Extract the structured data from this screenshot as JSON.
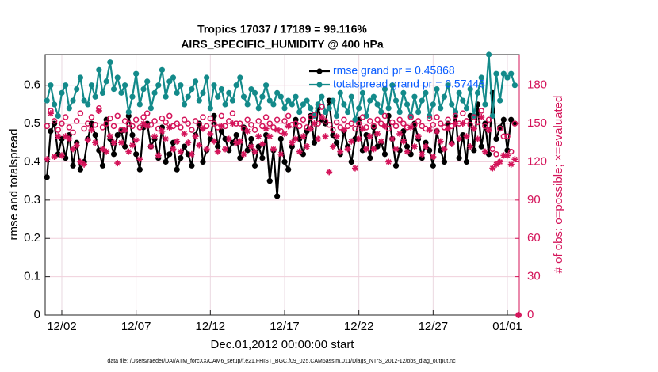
{
  "chart_data": {
    "type": "line",
    "title": "Tropics 17037 / 17189 = 99.116%",
    "subtitle": "AIRS_SPECIFIC_HUMIDITY @ 400 hPa",
    "x_label": "Dec.01,2012 00:00:00 start",
    "y_label": "rmse and totalspread",
    "y2_label": "# of obs: o=possible; ×=evaluated",
    "footnote": "data file: /Users/raeder/DAI/ATM_forcXX/CAM6_setup/f.e21.FHIST_BGC.f09_025.CAM6assim.011/Diags_NTrS_2012-12/obs_diag_output.nc",
    "xlim": [
      -0.12,
      31.8
    ],
    "ylim": [
      0,
      0.68
    ],
    "y2lim": [
      0,
      204
    ],
    "xticks": [
      {
        "value": 1,
        "label": "12/02"
      },
      {
        "value": 6,
        "label": "12/07"
      },
      {
        "value": 11,
        "label": "12/12"
      },
      {
        "value": 16,
        "label": "12/17"
      },
      {
        "value": 21,
        "label": "12/22"
      },
      {
        "value": 26,
        "label": "12/27"
      },
      {
        "value": 31,
        "label": "01/01"
      }
    ],
    "yticks": [
      0,
      0.1,
      0.2,
      0.3,
      0.4,
      0.5,
      0.6
    ],
    "y2ticks": [
      0,
      30,
      60,
      90,
      120,
      150,
      180
    ],
    "grid": true,
    "x": [
      0,
      0.25,
      0.5,
      0.75,
      1,
      1.25,
      1.5,
      1.75,
      2,
      2.25,
      2.5,
      2.75,
      3,
      3.25,
      3.5,
      3.75,
      4,
      4.25,
      4.5,
      4.75,
      5,
      5.25,
      5.5,
      5.75,
      6,
      6.25,
      6.5,
      6.75,
      7,
      7.25,
      7.5,
      7.75,
      8,
      8.25,
      8.5,
      8.75,
      9,
      9.25,
      9.5,
      9.75,
      10,
      10.25,
      10.5,
      10.75,
      11,
      11.25,
      11.5,
      11.75,
      12,
      12.25,
      12.5,
      12.75,
      13,
      13.25,
      13.5,
      13.75,
      14,
      14.25,
      14.5,
      14.75,
      15,
      15.25,
      15.5,
      15.75,
      16,
      16.25,
      16.5,
      16.75,
      17,
      17.25,
      17.5,
      17.75,
      18,
      18.25,
      18.5,
      18.75,
      19,
      19.25,
      19.5,
      19.75,
      20,
      20.25,
      20.5,
      20.75,
      21,
      21.25,
      21.5,
      21.75,
      22,
      22.25,
      22.5,
      22.75,
      23,
      23.25,
      23.5,
      23.75,
      24,
      24.25,
      24.5,
      24.75,
      25,
      25.25,
      25.5,
      25.75,
      26,
      26.25,
      26.5,
      26.75,
      27,
      27.25,
      27.5,
      27.75,
      28,
      28.25,
      28.5,
      28.75,
      29,
      29.25,
      29.5,
      29.75,
      30,
      30.25,
      30.5,
      30.75,
      31,
      31.25,
      31.5,
      31.75
    ],
    "series": [
      {
        "name": "rmse grand pr = 0.45868",
        "color": "#000000",
        "marker": "dot",
        "values": [
          0.36,
          0.48,
          0.5,
          0.42,
          0.46,
          0.41,
          0.47,
          0.39,
          0.45,
          0.38,
          0.4,
          0.46,
          0.5,
          0.47,
          0.43,
          0.39,
          0.51,
          0.46,
          0.42,
          0.47,
          0.48,
          0.44,
          0.52,
          0.47,
          0.42,
          0.38,
          0.49,
          0.5,
          0.44,
          0.46,
          0.41,
          0.49,
          0.4,
          0.42,
          0.45,
          0.38,
          0.41,
          0.44,
          0.42,
          0.39,
          0.47,
          0.5,
          0.4,
          0.43,
          0.46,
          0.52,
          0.44,
          0.48,
          0.46,
          0.43,
          0.45,
          0.47,
          0.41,
          0.49,
          0.43,
          0.46,
          0.39,
          0.44,
          0.41,
          0.47,
          0.35,
          0.43,
          0.31,
          0.46,
          0.4,
          0.38,
          0.44,
          0.51,
          0.46,
          0.42,
          0.48,
          0.52,
          0.45,
          0.54,
          0.51,
          0.5,
          0.56,
          0.47,
          0.45,
          0.42,
          0.48,
          0.44,
          0.4,
          0.46,
          0.51,
          0.43,
          0.47,
          0.41,
          0.49,
          0.44,
          0.45,
          0.42,
          0.52,
          0.46,
          0.39,
          0.43,
          0.48,
          0.44,
          0.42,
          0.5,
          0.46,
          0.41,
          0.45,
          0.43,
          0.39,
          0.48,
          0.43,
          0.4,
          0.5,
          0.45,
          0.53,
          0.41,
          0.47,
          0.4,
          0.52,
          0.43,
          0.55,
          0.44,
          0.5,
          0.42,
          0.58,
          0.46,
          0.49,
          0.51,
          0.43,
          0.51,
          0.5,
          null
        ]
      },
      {
        "name": "totalspread grand pr = 0.57448",
        "color": "#138a8a",
        "marker": "dot",
        "values": [
          0.56,
          0.6,
          0.55,
          0.52,
          0.58,
          0.6,
          0.54,
          0.56,
          0.59,
          0.62,
          0.56,
          0.55,
          0.6,
          0.57,
          0.64,
          0.58,
          0.61,
          0.66,
          0.59,
          0.62,
          0.58,
          0.6,
          0.53,
          0.57,
          0.63,
          0.55,
          0.59,
          0.61,
          0.54,
          0.58,
          0.6,
          0.64,
          0.57,
          0.61,
          0.62,
          0.58,
          0.6,
          0.55,
          0.57,
          0.59,
          0.61,
          0.56,
          0.58,
          0.62,
          0.54,
          0.6,
          0.57,
          0.59,
          0.55,
          0.58,
          0.56,
          0.6,
          0.62,
          0.57,
          0.55,
          0.59,
          0.58,
          0.54,
          0.57,
          0.6,
          0.56,
          0.55,
          0.58,
          0.57,
          0.54,
          0.56,
          0.55,
          0.57,
          0.53,
          0.55,
          0.56,
          0.54,
          0.52,
          0.55,
          0.57,
          0.53,
          0.54,
          0.56,
          0.52,
          0.58,
          0.55,
          0.53,
          0.57,
          0.51,
          0.54,
          0.58,
          0.52,
          0.56,
          0.57,
          0.55,
          0.53,
          0.59,
          0.54,
          0.6,
          0.56,
          0.53,
          0.58,
          0.55,
          0.52,
          0.57,
          0.53,
          0.56,
          0.58,
          0.52,
          0.55,
          0.59,
          0.54,
          0.57,
          0.6,
          0.55,
          0.53,
          0.58,
          0.56,
          0.54,
          0.59,
          0.52,
          0.58,
          0.62,
          0.55,
          0.68,
          0.52,
          0.63,
          0.56,
          0.63,
          0.62,
          0.63,
          0.6,
          null
        ]
      },
      {
        "name": "possible",
        "color": "#d4145a",
        "marker": "circle",
        "axis": "y2",
        "values": [
          148,
          160,
          152,
          145,
          150,
          155,
          147,
          143,
          152,
          158,
          146,
          150,
          155,
          149,
          162,
          147,
          150,
          154,
          148,
          156,
          145,
          152,
          150,
          148,
          153,
          147,
          155,
          158,
          149,
          152,
          146,
          154,
          151,
          156,
          148,
          150,
          147,
          153,
          150,
          145,
          152,
          149,
          155,
          148,
          154,
          150,
          147,
          156,
          148,
          152,
          158,
          150,
          150,
          146,
          153,
          149,
          145,
          152,
          148,
          155,
          150,
          147,
          153,
          144,
          152,
          156,
          149,
          150,
          148,
          153,
          147,
          155,
          157,
          150,
          163,
          152,
          149,
          145,
          151,
          147,
          153,
          148,
          150,
          146,
          150,
          155,
          147,
          152,
          148,
          153,
          150,
          156,
          146,
          151,
          148,
          153,
          150,
          147,
          155,
          149,
          152,
          148,
          146,
          154,
          149,
          155,
          150,
          147,
          153,
          148,
          156,
          150,
          158,
          152,
          149,
          155,
          151,
          160,
          148,
          153,
          130,
          126,
          146,
          140,
          140,
          128,
          150,
          0
        ]
      },
      {
        "name": "evaluated",
        "color": "#d4145a",
        "marker": "star",
        "axis": "y2",
        "values": [
          122,
          158,
          124,
          140,
          125,
          140,
          138,
          130,
          133,
          120,
          118,
          137,
          145,
          135,
          160,
          130,
          128,
          140,
          135,
          119,
          135,
          145,
          128,
          133,
          137,
          122,
          150,
          148,
          132,
          140,
          125,
          144,
          138,
          147,
          130,
          136,
          128,
          142,
          135,
          126,
          140,
          133,
          146,
          130,
          142,
          136,
          128,
          148,
          130,
          138,
          150,
          135,
          136,
          126,
          144,
          132,
          128,
          140,
          134,
          146,
          140,
          130,
          145,
          126,
          142,
          148,
          135,
          138,
          128,
          140,
          132,
          146,
          150,
          138,
          155,
          140,
          112,
          132,
          140,
          128,
          145,
          130,
          136,
          115,
          138,
          146,
          130,
          140,
          130,
          142,
          136,
          148,
          120,
          138,
          130,
          142,
          136,
          128,
          147,
          132,
          140,
          126,
          132,
          145,
          124,
          144,
          136,
          130,
          146,
          134,
          150,
          138,
          150,
          140,
          132,
          146,
          138,
          155,
          128,
          145,
          115,
          118,
          120,
          125,
          125,
          118,
          122,
          0
        ]
      }
    ]
  }
}
